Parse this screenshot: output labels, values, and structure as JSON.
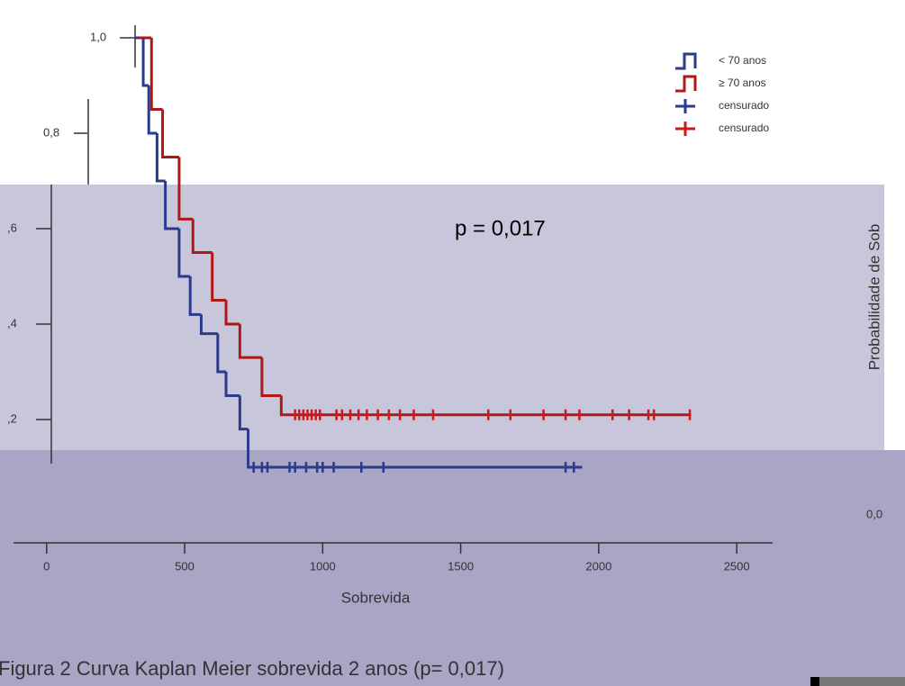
{
  "chart_data": {
    "type": "line",
    "step": true,
    "annotation": "p = 0,017",
    "xlabel": "Sobrevida",
    "ylabel": "Probabilidade de Sob",
    "caption": "Figura 2 Curva Kaplan Meier sobrevida 2 anos (p= 0,017)",
    "xlim": [
      -120,
      2630
    ],
    "ylim": [
      0,
      1
    ],
    "xticks": [
      0,
      500,
      1000,
      1500,
      2000,
      2500
    ],
    "yticks": [
      {
        "value": 0,
        "label": "0,0"
      },
      {
        "value": 0.2,
        "label": ",2"
      },
      {
        "value": 0.4,
        "label": ",4"
      },
      {
        "value": 0.6,
        "label": ",6"
      },
      {
        "value": 0.8,
        "label": "0,8"
      },
      {
        "value": 1.0,
        "label": "1,0"
      }
    ],
    "series": [
      {
        "name": "< 70 anos",
        "color": "#2a3a8c",
        "kind": "curve",
        "x": [
          320,
          350,
          370,
          400,
          430,
          480,
          520,
          560,
          620,
          650,
          700,
          730,
          1940
        ],
        "values": [
          1.0,
          0.9,
          0.8,
          0.7,
          0.6,
          0.5,
          0.42,
          0.38,
          0.3,
          0.25,
          0.18,
          0.1,
          0.1
        ]
      },
      {
        "name": "≥ 70 anos",
        "color": "#b01818",
        "kind": "curve",
        "x": [
          330,
          380,
          420,
          480,
          530,
          600,
          650,
          700,
          780,
          850,
          2330
        ],
        "values": [
          1.0,
          0.85,
          0.75,
          0.62,
          0.55,
          0.45,
          0.4,
          0.33,
          0.25,
          0.21,
          0.21
        ]
      },
      {
        "name": "censurado",
        "color": "#2a3a8c",
        "kind": "censor",
        "x": [
          750,
          780,
          800,
          880,
          900,
          940,
          980,
          1000,
          1040,
          1140,
          1220,
          1880,
          1910
        ],
        "values": [
          0.1,
          0.1,
          0.1,
          0.1,
          0.1,
          0.1,
          0.1,
          0.1,
          0.1,
          0.1,
          0.1,
          0.1,
          0.1
        ]
      },
      {
        "name": "censurado",
        "color": "#d01818",
        "kind": "censor",
        "x": [
          900,
          915,
          930,
          945,
          960,
          975,
          990,
          1050,
          1070,
          1100,
          1130,
          1160,
          1200,
          1240,
          1280,
          1330,
          1400,
          1600,
          1680,
          1800,
          1880,
          1930,
          2050,
          2110,
          2180,
          2200,
          2330
        ],
        "values": [
          0.21,
          0.21,
          0.21,
          0.21,
          0.21,
          0.21,
          0.21,
          0.21,
          0.21,
          0.21,
          0.21,
          0.21,
          0.21,
          0.21,
          0.21,
          0.21,
          0.21,
          0.21,
          0.21,
          0.21,
          0.21,
          0.21,
          0.21,
          0.21,
          0.21,
          0.21,
          0.21
        ]
      }
    ]
  }
}
